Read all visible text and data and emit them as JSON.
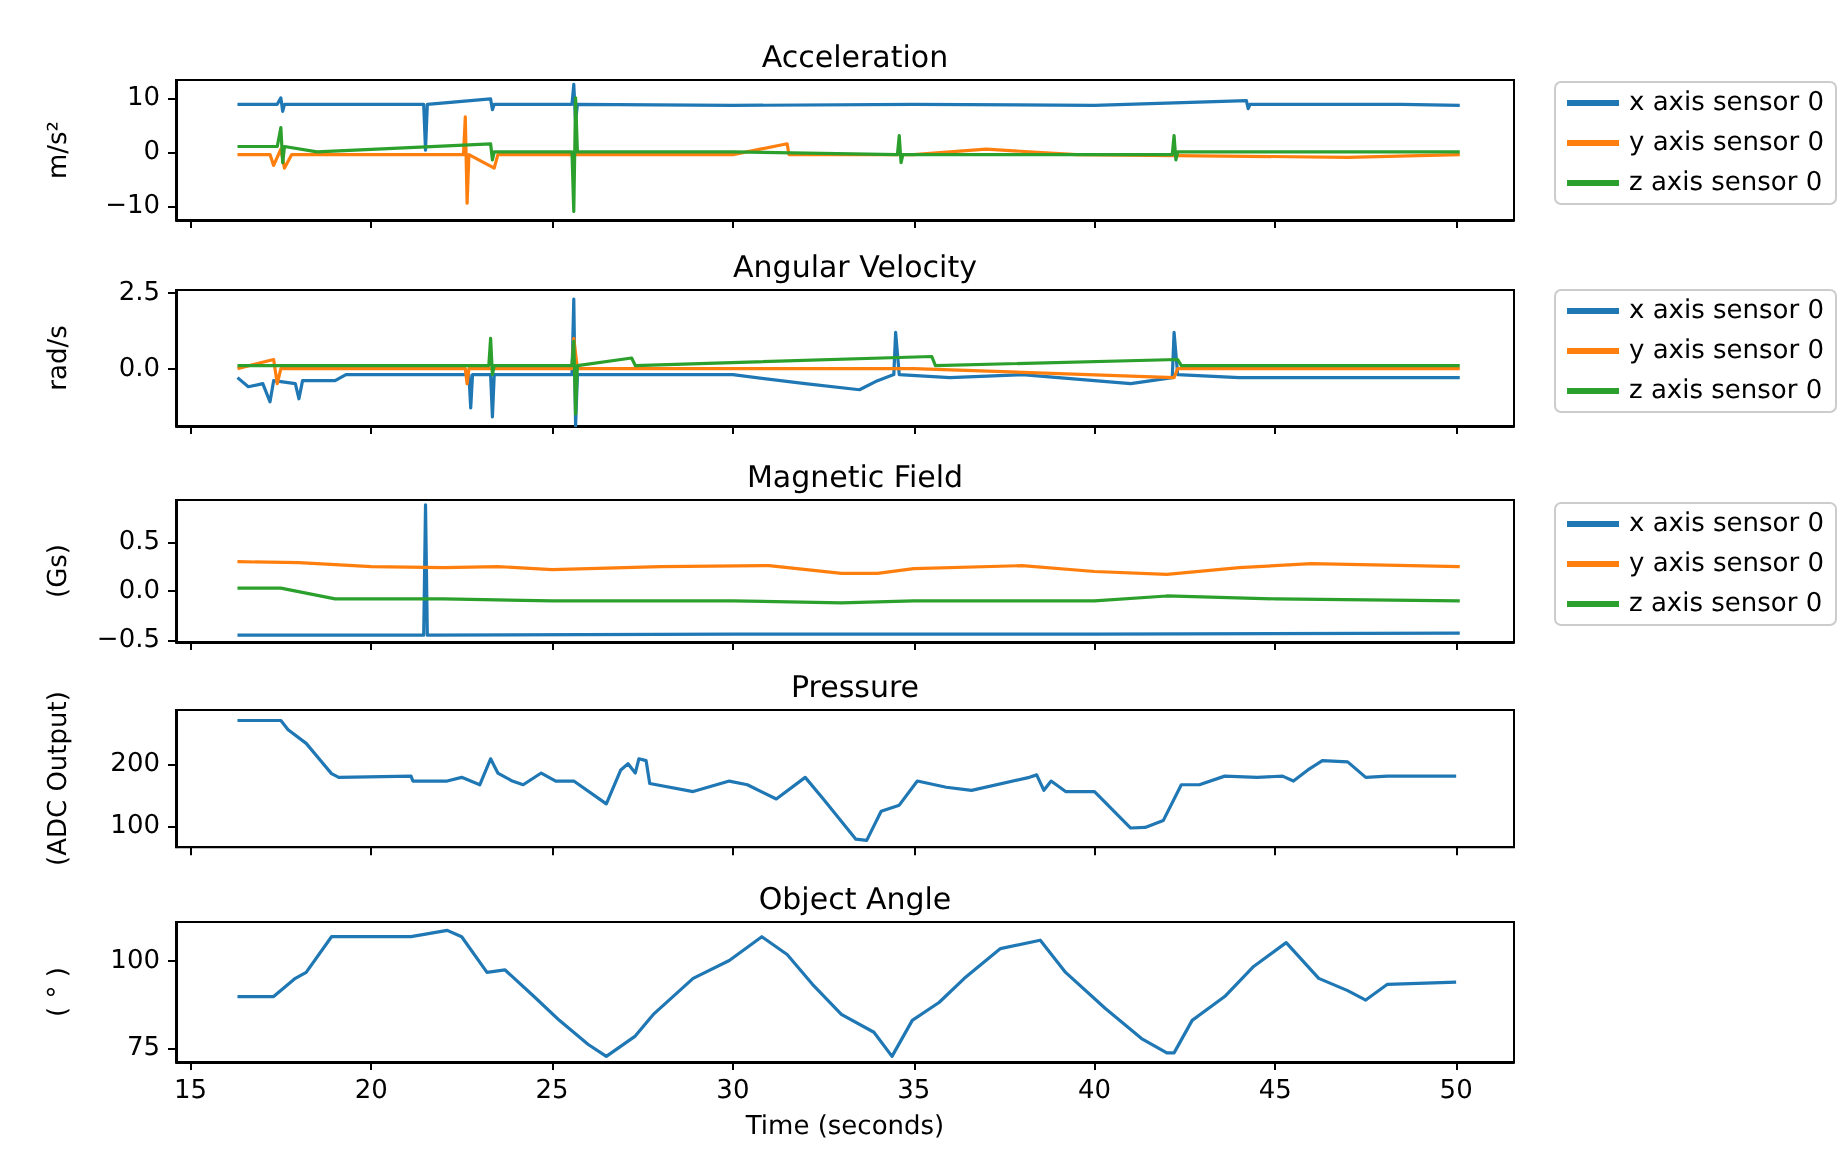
{
  "chart_data": [
    {
      "type": "line",
      "title": "Acceleration",
      "ylabel": "m/s²",
      "xlim": [
        14.6,
        51.6
      ],
      "xticks": [
        15,
        20,
        25,
        30,
        35,
        40,
        45,
        50
      ],
      "ylim": [
        -12.6,
        13.3
      ],
      "yticks": [
        {
          "value": -10,
          "label": "−10"
        },
        0,
        10
      ],
      "tick_labels": "y",
      "legend": "right",
      "series": [
        {
          "name": "x axis sensor 0",
          "color": "#1f77b4",
          "x": [
            16.3,
            17.4,
            17.5,
            17.55,
            17.6,
            21.45,
            21.5,
            21.55,
            23.3,
            23.35,
            23.4,
            25.55,
            25.6,
            25.65,
            25.7,
            30,
            35,
            40,
            44.2,
            44.25,
            44.3,
            48.5,
            50.1
          ],
          "values": [
            8.8,
            8.8,
            10,
            7.5,
            8.8,
            8.8,
            0.3,
            8.8,
            9.8,
            7.8,
            8.8,
            8.8,
            12.5,
            5.5,
            8.8,
            8.6,
            8.8,
            8.6,
            9.5,
            8,
            8.8,
            8.8,
            8.6
          ]
        },
        {
          "name": "y axis sensor 0",
          "color": "#ff7f0e",
          "x": [
            16.3,
            17.2,
            17.3,
            17.5,
            17.6,
            17.8,
            22.55,
            22.6,
            22.65,
            22.7,
            23.4,
            23.5,
            25.6,
            30,
            31.5,
            31.55,
            35,
            37,
            39.5,
            45,
            47,
            50.1
          ],
          "values": [
            -0.5,
            -0.5,
            -2.5,
            0.5,
            -3,
            -0.5,
            -0.5,
            6.5,
            -9.5,
            -0.5,
            -3,
            -0.5,
            -0.5,
            -0.5,
            1.5,
            -0.5,
            -0.5,
            0.5,
            -0.5,
            null,
            -1,
            -0.5
          ]
        },
        {
          "name": "z axis sensor 0",
          "color": "#2ca02c",
          "x": [
            16.3,
            17.4,
            17.5,
            17.55,
            17.6,
            18.5,
            23.3,
            23.35,
            23.4,
            25.55,
            25.6,
            25.65,
            25.7,
            30,
            34.55,
            34.6,
            34.65,
            34.7,
            40,
            42.15,
            42.2,
            42.25,
            42.3,
            50.1
          ],
          "values": [
            1,
            1,
            4.5,
            -2,
            1,
            0,
            1.5,
            -1.5,
            0,
            0,
            -11,
            10,
            0,
            0,
            -0.5,
            3,
            -2,
            -0.5,
            -0.5,
            -0.5,
            3,
            -1.5,
            0,
            0
          ]
        }
      ]
    },
    {
      "type": "line",
      "title": "Angular Velocity",
      "ylabel": "rad/s",
      "xlim": [
        14.6,
        51.6
      ],
      "xticks": [
        15,
        20,
        25,
        30,
        35,
        40,
        45,
        50
      ],
      "ylim": [
        -1.9,
        2.6
      ],
      "yticks": [
        {
          "value": 0,
          "label": "0.0"
        },
        2.5
      ],
      "tick_labels": "y",
      "legend": "right",
      "series": [
        {
          "name": "x axis sensor 0",
          "color": "#1f77b4",
          "x": [
            16.3,
            16.6,
            17,
            17.2,
            17.3,
            17.9,
            18,
            18.1,
            19,
            19.3,
            22.7,
            22.75,
            22.8,
            23.3,
            23.35,
            23.4,
            25.55,
            25.6,
            25.65,
            25.7,
            30,
            32,
            33.5,
            34,
            34.45,
            34.5,
            34.6,
            36,
            38,
            40,
            41,
            42.15,
            42.2,
            42.3,
            44,
            48,
            50.1
          ],
          "values": [
            -0.3,
            -0.6,
            -0.5,
            -1.1,
            -0.4,
            -0.5,
            -1,
            -0.4,
            -0.4,
            -0.2,
            -0.2,
            -1.3,
            -0.2,
            -0.2,
            -1.6,
            -0.2,
            -0.2,
            2.3,
            -1.9,
            -0.2,
            -0.2,
            -0.5,
            -0.7,
            -0.4,
            -0.2,
            1.2,
            -0.2,
            -0.3,
            -0.2,
            -0.4,
            -0.5,
            -0.3,
            1.2,
            -0.2,
            -0.3,
            -0.3,
            -0.3
          ]
        },
        {
          "name": "y axis sensor 0",
          "color": "#ff7f0e",
          "x": [
            16.3,
            17.3,
            17.4,
            17.5,
            22.6,
            22.65,
            22.7,
            25.55,
            25.6,
            25.65,
            25.7,
            35,
            42.2,
            42.3,
            50.1
          ],
          "values": [
            0,
            0.3,
            -0.5,
            0,
            0,
            -0.5,
            0,
            0,
            1,
            null,
            0,
            0,
            -0.3,
            0,
            0
          ]
        },
        {
          "name": "z axis sensor 0",
          "color": "#2ca02c",
          "x": [
            16.3,
            23.25,
            23.3,
            23.35,
            23.4,
            25.55,
            25.6,
            25.65,
            25.7,
            27.2,
            27.3,
            35.5,
            35.6,
            42.3,
            42.4,
            50.1
          ],
          "values": [
            0.1,
            0.1,
            1,
            -0.2,
            0.1,
            0.1,
            0.9,
            -1.5,
            0.1,
            0.35,
            0.1,
            0.4,
            0.1,
            0.3,
            0.1,
            0.1
          ]
        }
      ]
    },
    {
      "type": "line",
      "title": "Magnetic Field",
      "ylabel": "(Gs)",
      "xlim": [
        14.6,
        51.6
      ],
      "xticks": [
        15,
        20,
        25,
        30,
        35,
        40,
        45,
        50
      ],
      "ylim": [
        -0.52,
        0.93
      ],
      "yticks": [
        {
          "value": -0.5,
          "label": "−0.5"
        },
        {
          "value": 0,
          "label": "0.0"
        },
        0.5
      ],
      "tick_labels": "y",
      "legend": "right",
      "series": [
        {
          "name": "x axis sensor 0",
          "color": "#1f77b4",
          "x": [
            16.3,
            21.45,
            21.5,
            21.55,
            30,
            40,
            50.1
          ],
          "values": [
            -0.45,
            -0.45,
            0.88,
            -0.45,
            -0.44,
            -0.44,
            -0.43
          ]
        },
        {
          "name": "y axis sensor 0",
          "color": "#ff7f0e",
          "x": [
            16.3,
            18,
            20,
            22,
            23.5,
            25,
            28,
            31,
            33,
            34,
            35,
            38,
            40,
            42,
            44,
            46,
            50.1
          ],
          "values": [
            0.3,
            0.29,
            0.25,
            0.24,
            0.25,
            0.22,
            0.25,
            0.26,
            0.18,
            0.18,
            0.23,
            0.26,
            0.2,
            0.17,
            0.24,
            0.28,
            0.25
          ]
        },
        {
          "name": "z axis sensor 0",
          "color": "#2ca02c",
          "x": [
            16.3,
            17.5,
            19,
            22,
            25,
            30,
            33,
            35,
            40,
            42,
            45,
            50.1
          ],
          "values": [
            0.03,
            0.03,
            -0.08,
            -0.08,
            -0.1,
            -0.1,
            -0.12,
            -0.1,
            -0.1,
            -0.05,
            -0.08,
            -0.1
          ]
        }
      ]
    },
    {
      "type": "line",
      "title": "Pressure",
      "ylabel": "(ADC Output)",
      "xlim": [
        14.6,
        51.6
      ],
      "xticks": [
        15,
        20,
        25,
        30,
        35,
        40,
        45,
        50
      ],
      "ylim": [
        65,
        287
      ],
      "yticks": [
        100,
        200
      ],
      "tick_labels": "y",
      "series": [
        {
          "color": "#1f77b4",
          "x": [
            16.3,
            17.5,
            17.7,
            18.2,
            18.9,
            19.1,
            21.1,
            21.15,
            22.1,
            22.5,
            23,
            23.3,
            23.5,
            23.9,
            24.2,
            24.7,
            25.1,
            25.6,
            26.5,
            26.9,
            27.1,
            27.3,
            27.4,
            27.6,
            27.7,
            28.9,
            29.9,
            30.4,
            31.2,
            32,
            32.5,
            33.4,
            33.7,
            34.1,
            34.6,
            35.1,
            35.9,
            36.6,
            38.2,
            38.4,
            38.6,
            38.8,
            39.2,
            40,
            41,
            41.4,
            41.9,
            42.4,
            42.9,
            43.6,
            44.5,
            45.2,
            45.5,
            45.9,
            46.3,
            47,
            47.5,
            48.1,
            50
          ],
          "values": [
            270,
            270,
            255,
            233,
            184,
            178,
            180,
            172,
            172,
            178,
            166,
            208,
            185,
            172,
            166,
            185,
            172,
            172,
            135,
            190,
            200,
            185,
            208,
            205,
            168,
            155,
            172,
            166,
            143,
            178,
            143,
            78,
            76,
            123,
            133,
            172,
            162,
            157,
            178,
            182,
            157,
            172,
            155,
            155,
            96,
            97,
            108,
            166,
            166,
            180,
            178,
            180,
            172,
            190,
            205,
            203,
            178,
            180,
            180
          ]
        }
      ]
    },
    {
      "type": "line",
      "title": "Object Angle",
      "ylabel": "( ° )",
      "xlabel": "Time (seconds)",
      "xlim": [
        14.6,
        51.6
      ],
      "xticks": [
        15,
        20,
        25,
        30,
        35,
        40,
        45,
        50
      ],
      "ylim": [
        71,
        111
      ],
      "yticks": [
        75,
        100
      ],
      "series": [
        {
          "color": "#1f77b4",
          "x": [
            16.3,
            17.3,
            17.9,
            18.2,
            18.9,
            21.1,
            22.1,
            22.5,
            23.2,
            23.7,
            24.5,
            25.2,
            26,
            26.5,
            27.3,
            27.8,
            28.9,
            29.9,
            30.8,
            31.5,
            32.2,
            33,
            33.9,
            34.4,
            34.96,
            35.7,
            36.4,
            37.4,
            38.5,
            39.2,
            40.3,
            41.3,
            42,
            42.2,
            42.7,
            43.6,
            44.4,
            45.3,
            46.2,
            47,
            47.5,
            48.1,
            50
          ],
          "values": [
            89.7,
            89.7,
            94.9,
            96.6,
            106.8,
            106.8,
            108.6,
            106.8,
            96.6,
            97.3,
            89.7,
            82.9,
            76,
            72.6,
            78.4,
            84.6,
            94.9,
            100,
            106.8,
            101.7,
            93.2,
            84.6,
            79.5,
            72.6,
            82.9,
            88,
            94.9,
            103.4,
            105.8,
            96.6,
            86.3,
            77.7,
            73.6,
            73.6,
            82.9,
            89.7,
            98.3,
            105.1,
            94.9,
            91.4,
            88.7,
            93.2,
            93.8
          ]
        }
      ]
    }
  ]
}
